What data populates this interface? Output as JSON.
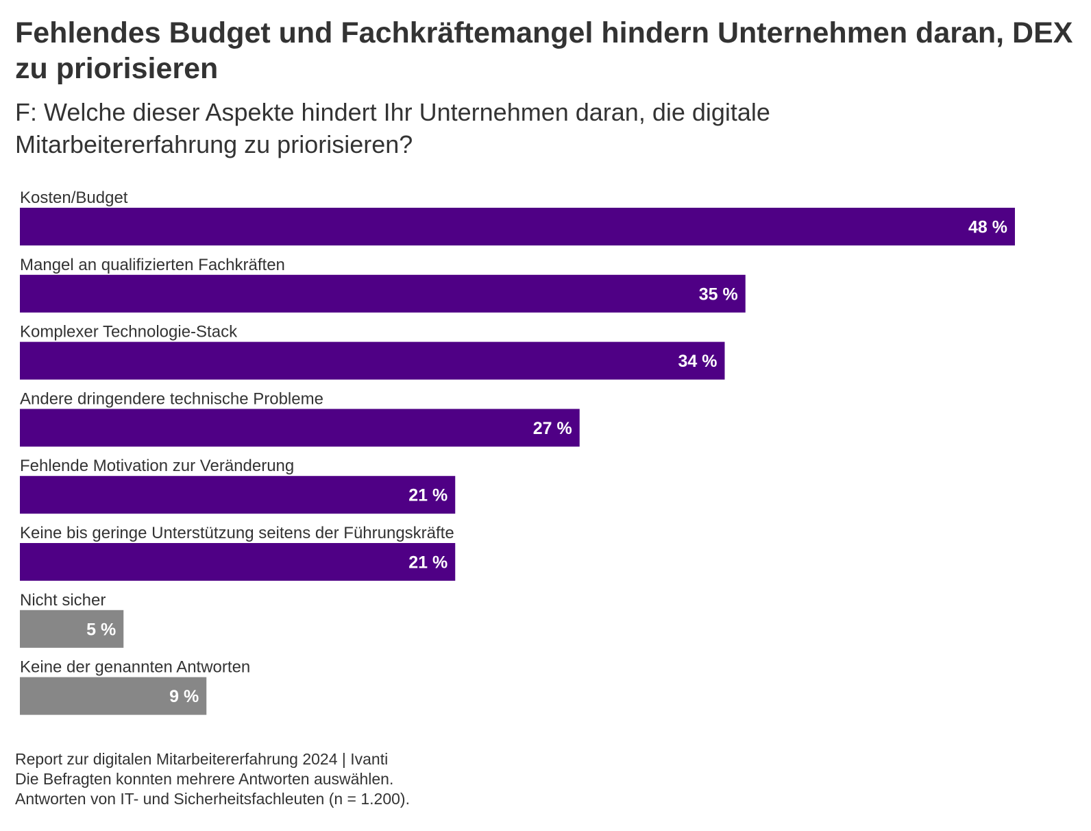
{
  "title": "Fehlendes Budget und Fachkräftemangel hindern Unternehmen daran, DEX zu priorisieren",
  "subtitle": "F: Welche dieser Aspekte hindert Ihr Unternehmen daran, die digitale Mitarbeitererfahrung zu priorisieren?",
  "colors": {
    "primary": "#4f0085",
    "neutral": "#878787",
    "label_text": "#333333",
    "value_text": "#ffffff"
  },
  "chart_data": {
    "type": "bar",
    "orientation": "horizontal",
    "categories": [
      "Kosten/Budget",
      "Mangel an qualifizierten Fachkräften",
      "Komplexer Technologie-Stack",
      "Andere dringendere technische Probleme",
      "Fehlende Motivation zur Veränderung",
      "Keine bis geringe Unterstützung seitens der Führungskräfte",
      "Nicht sicher",
      "Keine der genannten Antworten"
    ],
    "values": [
      48,
      35,
      34,
      27,
      21,
      21,
      5,
      9
    ],
    "value_labels": [
      "48 %",
      "35 %",
      "34 %",
      "27 %",
      "21 %",
      "21 %",
      "5 %",
      "9 %"
    ],
    "bar_colors": [
      "#4f0085",
      "#4f0085",
      "#4f0085",
      "#4f0085",
      "#4f0085",
      "#4f0085",
      "#878787",
      "#878787"
    ],
    "xlim": [
      0,
      48
    ],
    "grid": false,
    "legend": "none"
  },
  "footer": {
    "line1": "Report zur digitalen Mitarbeitererfahrung 2024 | Ivanti",
    "line2": "Die Befragten konnten mehrere Antworten auswählen.",
    "line3": "Antworten von IT- und Sicherheitsfachleuten (n = 1.200)."
  }
}
